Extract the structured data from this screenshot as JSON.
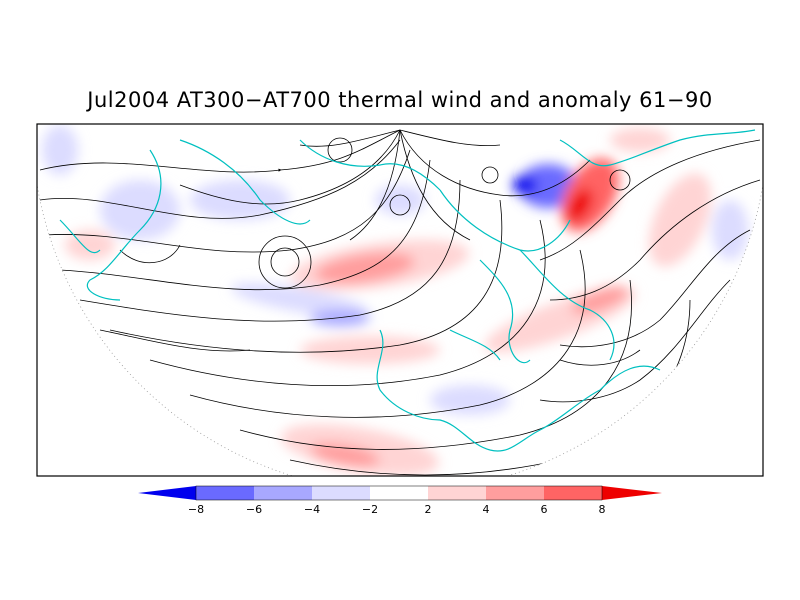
{
  "title": "Jul2004 AT300−AT700 thermal wind and anomaly 61−90",
  "map": {
    "projection": "polar-stereographic-northern-hemisphere",
    "features": [
      "thermal-wind-streamlines",
      "temperature-difference-anomaly-shading",
      "coastlines"
    ],
    "coastline_color": "#00c0c0",
    "streamline_color": "#000000"
  },
  "colorbar": {
    "labels": [
      "−8",
      "−6",
      "−4",
      "−2",
      "2",
      "4",
      "6",
      "8"
    ],
    "colors": [
      "#0000ee",
      "#6a6aff",
      "#a8a8ff",
      "#dcdcff",
      "#ffffff",
      "#ffd4d4",
      "#ff9e9e",
      "#ff6464",
      "#ee0000"
    ]
  }
}
